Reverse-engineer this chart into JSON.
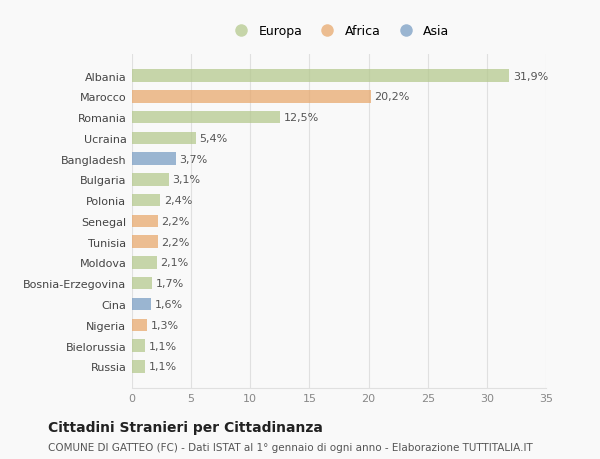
{
  "countries": [
    "Albania",
    "Marocco",
    "Romania",
    "Ucraina",
    "Bangladesh",
    "Bulgaria",
    "Polonia",
    "Senegal",
    "Tunisia",
    "Moldova",
    "Bosnia-Erzegovina",
    "Cina",
    "Nigeria",
    "Bielorussia",
    "Russia"
  ],
  "values": [
    31.9,
    20.2,
    12.5,
    5.4,
    3.7,
    3.1,
    2.4,
    2.2,
    2.2,
    2.1,
    1.7,
    1.6,
    1.3,
    1.1,
    1.1
  ],
  "labels": [
    "31,9%",
    "20,2%",
    "12,5%",
    "5,4%",
    "3,7%",
    "3,1%",
    "2,4%",
    "2,2%",
    "2,2%",
    "2,1%",
    "1,7%",
    "1,6%",
    "1,3%",
    "1,1%",
    "1,1%"
  ],
  "continents": [
    "Europa",
    "Africa",
    "Europa",
    "Europa",
    "Asia",
    "Europa",
    "Europa",
    "Africa",
    "Africa",
    "Europa",
    "Europa",
    "Asia",
    "Africa",
    "Europa",
    "Europa"
  ],
  "colors": {
    "Europa": "#b5c98e",
    "Africa": "#e8a96e",
    "Asia": "#7b9ec4"
  },
  "legend_labels": [
    "Europa",
    "Africa",
    "Asia"
  ],
  "legend_colors": [
    "#b5c98e",
    "#e8a96e",
    "#7b9ec4"
  ],
  "title": "Cittadini Stranieri per Cittadinanza",
  "subtitle": "COMUNE DI GATTEO (FC) - Dati ISTAT al 1° gennaio di ogni anno - Elaborazione TUTTITALIA.IT",
  "xlim": [
    0,
    35
  ],
  "xticks": [
    0,
    5,
    10,
    15,
    20,
    25,
    30,
    35
  ],
  "background_color": "#f9f9f9",
  "plot_background": "#f9f9f9",
  "grid_color": "#e0e0e0",
  "bar_height": 0.6,
  "label_fontsize": 8,
  "tick_fontsize": 8,
  "title_fontsize": 10,
  "subtitle_fontsize": 7.5
}
